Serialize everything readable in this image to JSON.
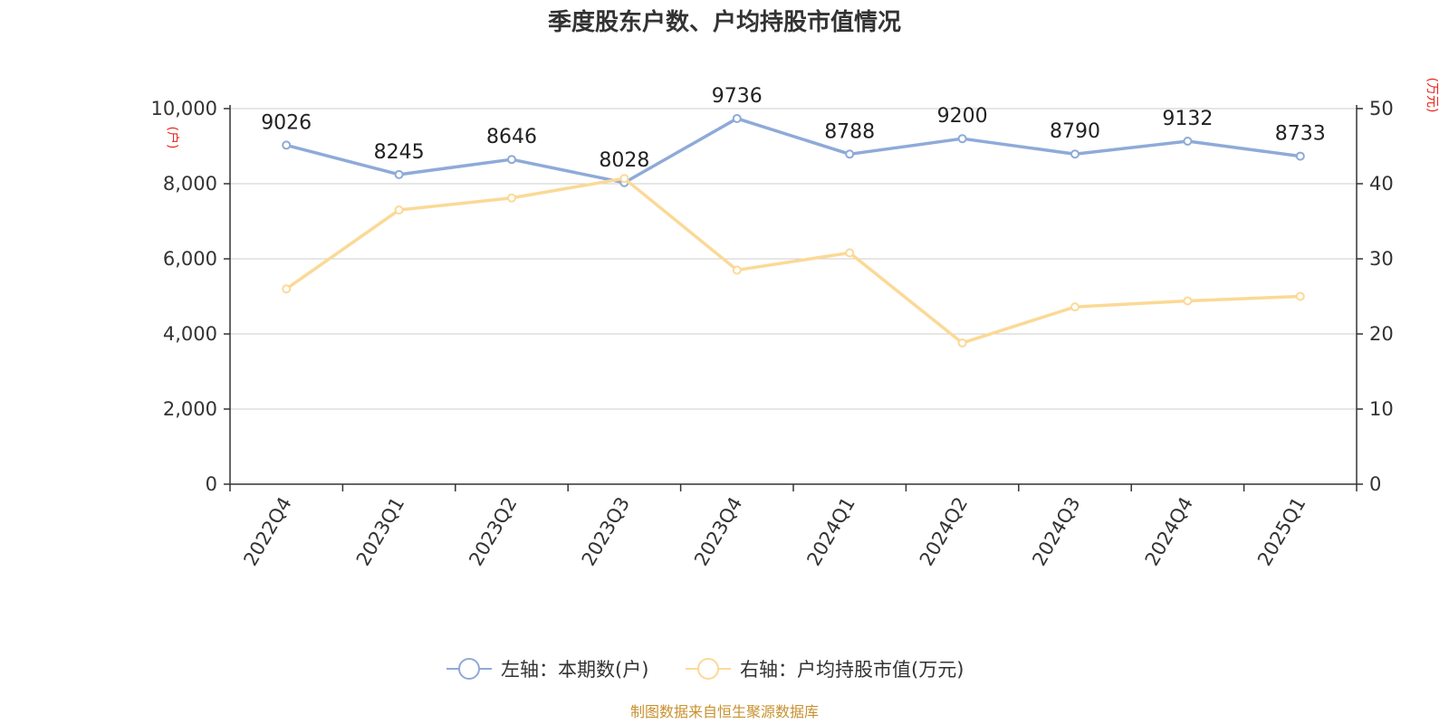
{
  "chart_data": {
    "type": "line",
    "title": "季度股东户数、户均持股市值情况",
    "categories": [
      "2022Q4",
      "2023Q1",
      "2023Q2",
      "2023Q3",
      "2023Q4",
      "2024Q1",
      "2024Q2",
      "2024Q3",
      "2024Q4",
      "2025Q1"
    ],
    "left_axis": {
      "unit": "(户)",
      "ylim": [
        0,
        10000
      ],
      "ticks": [
        "0",
        "2,000",
        "4,000",
        "6,000",
        "8,000",
        "10,000"
      ]
    },
    "right_axis": {
      "unit": "(万元)",
      "ylim": [
        0,
        50
      ],
      "ticks": [
        "0",
        "10",
        "20",
        "30",
        "40",
        "50"
      ]
    },
    "series": [
      {
        "name": "左轴：本期数(户)",
        "axis": "left",
        "color": "#8eaad8",
        "values": [
          9026,
          8245,
          8646,
          8028,
          9736,
          8788,
          9200,
          8790,
          9132,
          8733
        ],
        "labels": [
          "9026",
          "8245",
          "8646",
          "8028",
          "9736",
          "8788",
          "9200",
          "8790",
          "9132",
          "8733"
        ]
      },
      {
        "name": "右轴：户均持股市值(万元)",
        "axis": "right",
        "color": "#fbd996",
        "values": [
          26.0,
          36.5,
          38.1,
          40.7,
          28.5,
          30.8,
          18.8,
          23.6,
          24.4,
          25.0
        ]
      }
    ],
    "grid": true,
    "legend": "bottom-center"
  },
  "source": "制图数据来自恒生聚源数据库"
}
